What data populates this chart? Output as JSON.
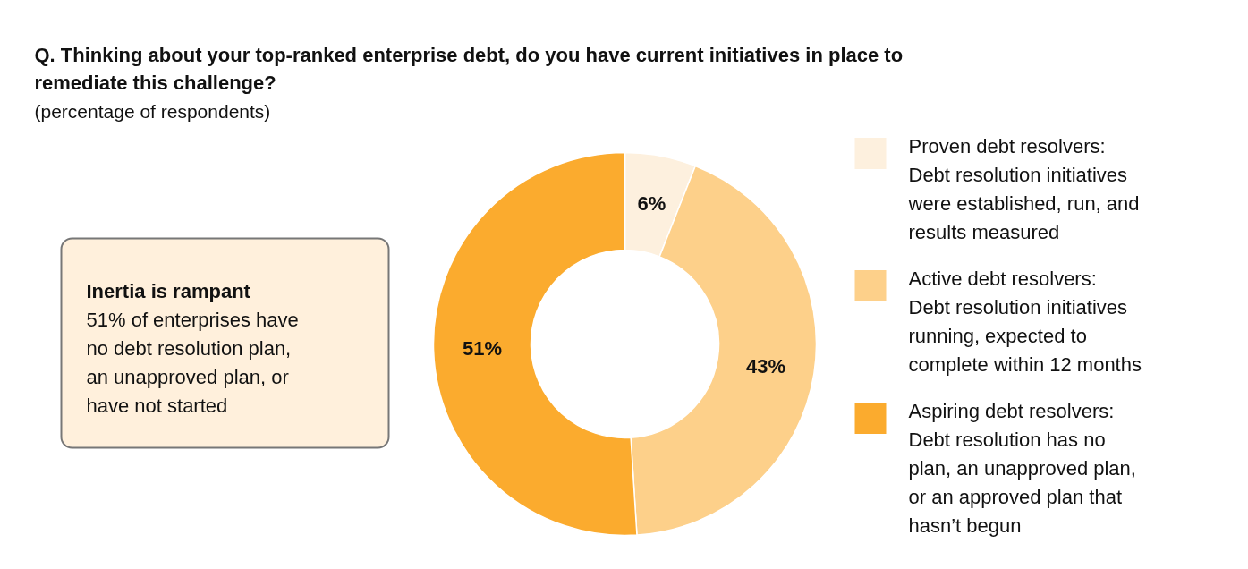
{
  "chart_data": {
    "type": "donut",
    "title": "Q. Thinking about your top-ranked enterprise debt, do you have current initiatives in place to remediate this challenge?",
    "subtitle": "(percentage of respondents)",
    "categories": [
      "Proven debt resolvers: Debt resolution initiatives were established, run, and results measured",
      "Active debt resolvers: Debt resolution initiatives running, expected to complete within 12 months",
      "Aspiring debt resolvers: Debt resolution has no plan, an unapproved plan, or an approved plan that hasn’t begun"
    ],
    "values": [
      6,
      43,
      51
    ],
    "colors": [
      "#fdf0de",
      "#fdd08a",
      "#fbab2e"
    ],
    "value_labels": [
      "6%",
      "43%",
      "51%"
    ],
    "legend": "right",
    "annotations": [
      "Inertia is rampant",
      "51% of enterprises have no debt resolution plan, an unapproved plan, or have not started"
    ]
  }
}
